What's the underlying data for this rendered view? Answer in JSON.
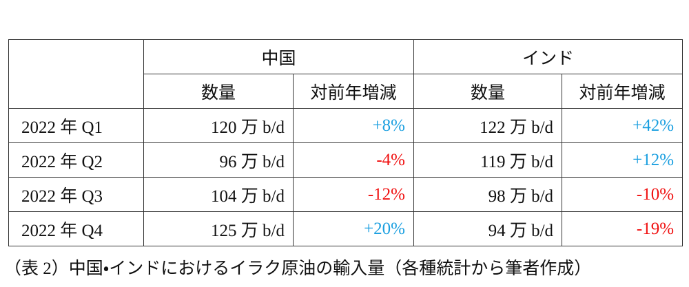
{
  "table": {
    "groups": [
      "中国",
      "インド"
    ],
    "subheaders": [
      "数量",
      "対前年増減",
      "数量",
      "対前年増減"
    ],
    "rows": [
      [
        "2022 年 Q1",
        "120 万 b/d",
        "+8%",
        "122 万 b/d",
        "+42%"
      ],
      [
        "2022 年 Q2",
        "96 万 b/d",
        "-4%",
        "119 万 b/d",
        "+12%"
      ],
      [
        "2022 年 Q3",
        "104 万 b/d",
        "-12%",
        "98 万 b/d",
        "-10%"
      ],
      [
        "2022 年 Q4",
        "125 万 b/d",
        "+20%",
        "94 万 b/d",
        "-19%"
      ]
    ],
    "positive_color": "#1a9fe0",
    "negative_color": "#f01010"
  },
  "caption": "（表 2）中国・インドにおけるイラク原油の輸入量（各種統計から筆者作成）"
}
